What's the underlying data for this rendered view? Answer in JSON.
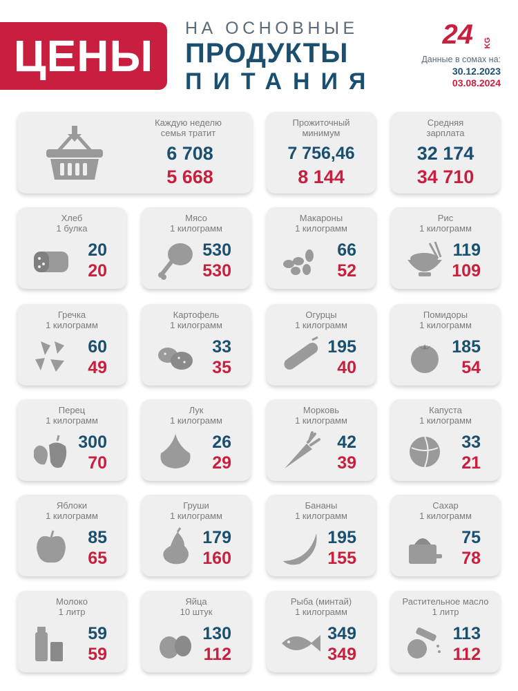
{
  "header": {
    "title": "ЦЕНЫ",
    "subtitle_line1": "НА ОСНОВНЫЕ",
    "subtitle_line2": "ПРОДУКТЫ",
    "subtitle_line3": "ПИТАНИЯ",
    "logo_text": "24",
    "logo_suffix": "KG",
    "dates_label": "Данные в сомах на:",
    "date_old": "30.12.2023",
    "date_new": "03.08.2024"
  },
  "colors": {
    "accent_red": "#c81f3f",
    "accent_blue": "#1b4f70",
    "card_bg": "#efefef",
    "icon_gray": "#9a9a9a"
  },
  "summary": {
    "weekly": {
      "label_line1": "Каждую неделю",
      "label_line2": "семья тратит",
      "old": "6 708",
      "new": "5 668",
      "icon": "shopping-basket-icon"
    },
    "minimum": {
      "label_line1": "Прожиточный",
      "label_line2": "минимум",
      "old": "7 756,46",
      "new": "8 144"
    },
    "salary": {
      "label_line1": "Средняя",
      "label_line2": "зарплата",
      "old": "32 174",
      "new": "34 710"
    }
  },
  "products": [
    {
      "name": "Хлеб",
      "unit": "1 булка",
      "old": "20",
      "new": "20",
      "icon": "bread-icon"
    },
    {
      "name": "Мясо",
      "unit": "1 килограмм",
      "old": "530",
      "new": "530",
      "icon": "meat-icon"
    },
    {
      "name": "Макароны",
      "unit": "1 килограмм",
      "old": "66",
      "new": "52",
      "icon": "pasta-icon"
    },
    {
      "name": "Рис",
      "unit": "1 килограмм",
      "old": "119",
      "new": "109",
      "icon": "rice-bowl-icon"
    },
    {
      "name": "Гречка",
      "unit": "1 килограмм",
      "old": "60",
      "new": "49",
      "icon": "buckwheat-icon"
    },
    {
      "name": "Картофель",
      "unit": "1 килограмм",
      "old": "33",
      "new": "35",
      "icon": "potato-icon"
    },
    {
      "name": "Огурцы",
      "unit": "1 килограмм",
      "old": "195",
      "new": "40",
      "icon": "cucumber-icon"
    },
    {
      "name": "Помидоры",
      "unit": "1 килограмм",
      "old": "185",
      "new": "54",
      "icon": "tomato-icon"
    },
    {
      "name": "Перец",
      "unit": "1 килограмм",
      "old": "300",
      "new": "70",
      "icon": "pepper-icon"
    },
    {
      "name": "Лук",
      "unit": "1 килограмм",
      "old": "26",
      "new": "29",
      "icon": "onion-icon"
    },
    {
      "name": "Морковь",
      "unit": "1 килограмм",
      "old": "42",
      "new": "39",
      "icon": "carrot-icon"
    },
    {
      "name": "Капуста",
      "unit": "1 килограмм",
      "old": "33",
      "new": "21",
      "icon": "cabbage-icon"
    },
    {
      "name": "Яблоки",
      "unit": "1 килограмм",
      "old": "85",
      "new": "65",
      "icon": "apple-icon"
    },
    {
      "name": "Груши",
      "unit": "1 килограмм",
      "old": "179",
      "new": "160",
      "icon": "pear-icon"
    },
    {
      "name": "Бананы",
      "unit": "1 килограмм",
      "old": "195",
      "new": "155",
      "icon": "banana-icon"
    },
    {
      "name": "Сахар",
      "unit": "1 килограмм",
      "old": "75",
      "new": "78",
      "icon": "sugar-icon"
    },
    {
      "name": "Молоко",
      "unit": "1 литр",
      "old": "59",
      "new": "59",
      "icon": "milk-icon"
    },
    {
      "name": "Яйца",
      "unit": "10 штук",
      "old": "130",
      "new": "112",
      "icon": "eggs-icon"
    },
    {
      "name": "Рыба (минтай)",
      "unit": "1 килограмм",
      "old": "349",
      "new": "349",
      "icon": "fish-icon"
    },
    {
      "name": "Растительное масло",
      "unit": "1 литр",
      "old": "113",
      "new": "112",
      "icon": "oil-icon"
    }
  ]
}
